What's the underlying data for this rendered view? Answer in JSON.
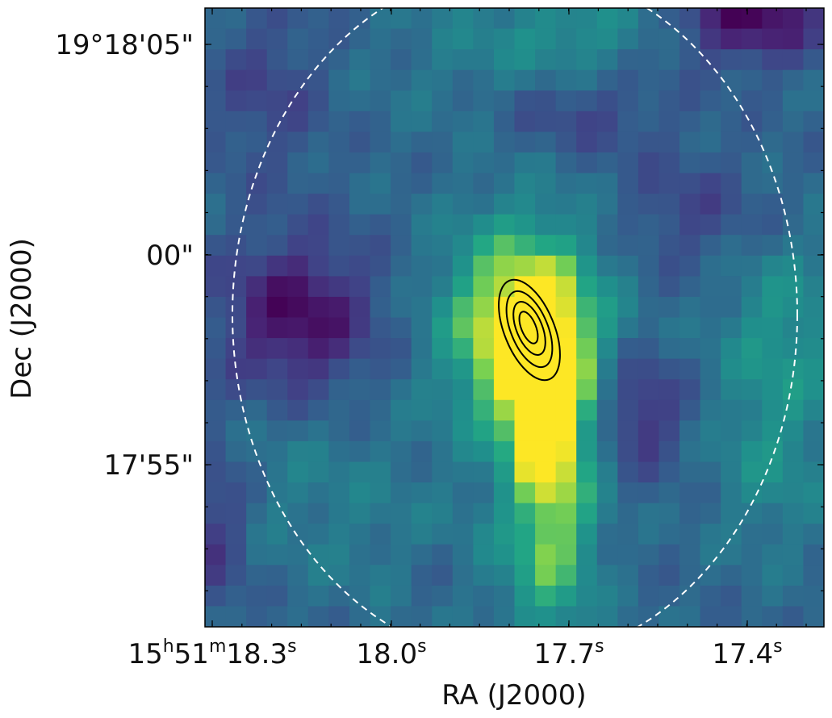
{
  "figure": {
    "x_axis_title": "RA (J2000)",
    "y_axis_title": "Dec (J2000)",
    "x_tick_labels": [
      {
        "h": "15",
        "m": "51",
        "s": "18.3",
        "unit": "s"
      },
      {
        "s": "18.0",
        "unit": "s"
      },
      {
        "s": "17.7",
        "unit": "s"
      },
      {
        "s": "17.4",
        "unit": "s"
      }
    ],
    "y_tick_labels": [
      "19°18'05\"",
      "00\"",
      "17'55\""
    ],
    "colormap": "viridis",
    "contour_color": "#000000",
    "circle_color": "#ffffff"
  }
}
